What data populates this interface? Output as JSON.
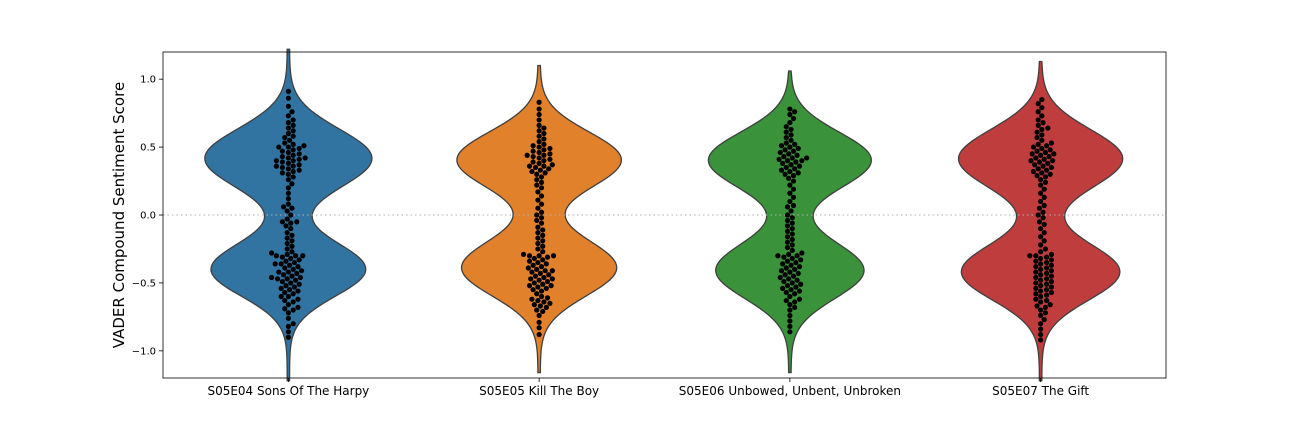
{
  "chart_data": {
    "type": "violin",
    "title": "",
    "xlabel": "",
    "ylabel": "VADER Compound Sentiment Score",
    "ylim": [
      -1.2,
      1.2
    ],
    "yticks": [
      -1.0,
      -0.5,
      0.0,
      0.5,
      1.0
    ],
    "ytick_labels": [
      "−1.0",
      "−0.5",
      "0.0",
      "0.5",
      "1.0"
    ],
    "zero_reference_line": true,
    "grid": false,
    "legend": "none",
    "swarm_color": "#000000",
    "categories": [
      "S05E04 Sons Of The Harpy",
      "S05E05 Kill The Boy",
      "S05E06 Unbowed, Unbent, Unbroken",
      "S05E07 The Gift"
    ],
    "colors": [
      "#3274a1",
      "#e1812c",
      "#3a923a",
      "#c03d3e"
    ],
    "series": [
      {
        "range": [
          -1.22,
          1.22
        ],
        "modes": [
          {
            "center": 0.43,
            "width": 0.22,
            "weight": 1.0
          },
          {
            "center": -0.41,
            "width": 0.2,
            "weight": 0.92
          }
        ],
        "points": [
          -0.9,
          -0.86,
          -0.82,
          -0.8,
          -0.76,
          -0.72,
          -0.7,
          -0.69,
          -0.68,
          -0.66,
          -0.64,
          -0.63,
          -0.62,
          -0.6,
          -0.6,
          -0.58,
          -0.57,
          -0.56,
          -0.55,
          -0.54,
          -0.53,
          -0.52,
          -0.51,
          -0.5,
          -0.49,
          -0.48,
          -0.47,
          -0.47,
          -0.46,
          -0.46,
          -0.45,
          -0.44,
          -0.43,
          -0.42,
          -0.42,
          -0.41,
          -0.4,
          -0.39,
          -0.38,
          -0.37,
          -0.36,
          -0.36,
          -0.35,
          -0.34,
          -0.33,
          -0.32,
          -0.31,
          -0.3,
          -0.3,
          -0.3,
          -0.29,
          -0.28,
          -0.27,
          -0.25,
          -0.23,
          -0.21,
          -0.19,
          -0.17,
          -0.15,
          -0.13,
          -0.1,
          -0.08,
          -0.06,
          -0.05,
          -0.05,
          -0.03,
          0.0,
          0.03,
          0.05,
          0.06,
          0.08,
          0.12,
          0.16,
          0.2,
          0.23,
          0.26,
          0.28,
          0.3,
          0.31,
          0.32,
          0.33,
          0.34,
          0.35,
          0.36,
          0.36,
          0.37,
          0.38,
          0.39,
          0.4,
          0.4,
          0.41,
          0.42,
          0.42,
          0.43,
          0.44,
          0.45,
          0.46,
          0.47,
          0.48,
          0.49,
          0.5,
          0.5,
          0.51,
          0.52,
          0.53,
          0.55,
          0.57,
          0.58,
          0.6,
          0.62,
          0.64,
          0.66,
          0.68,
          0.7,
          0.73,
          0.76,
          0.8,
          0.86,
          0.91
        ]
      },
      {
        "range": [
          -1.16,
          1.1
        ],
        "modes": [
          {
            "center": 0.42,
            "width": 0.21,
            "weight": 1.0
          },
          {
            "center": -0.4,
            "width": 0.21,
            "weight": 0.92
          }
        ],
        "points": [
          -0.88,
          -0.83,
          -0.79,
          -0.74,
          -0.71,
          -0.7,
          -0.68,
          -0.67,
          -0.66,
          -0.65,
          -0.64,
          -0.63,
          -0.62,
          -0.61,
          -0.6,
          -0.58,
          -0.56,
          -0.55,
          -0.54,
          -0.53,
          -0.52,
          -0.52,
          -0.51,
          -0.5,
          -0.49,
          -0.48,
          -0.47,
          -0.47,
          -0.46,
          -0.45,
          -0.44,
          -0.43,
          -0.42,
          -0.41,
          -0.41,
          -0.4,
          -0.39,
          -0.38,
          -0.37,
          -0.36,
          -0.35,
          -0.34,
          -0.33,
          -0.32,
          -0.31,
          -0.3,
          -0.3,
          -0.3,
          -0.29,
          -0.27,
          -0.25,
          -0.23,
          -0.21,
          -0.19,
          -0.17,
          -0.15,
          -0.13,
          -0.11,
          -0.09,
          -0.06,
          -0.04,
          -0.02,
          0.0,
          0.02,
          0.05,
          0.08,
          0.11,
          0.14,
          0.17,
          0.2,
          0.22,
          0.24,
          0.26,
          0.28,
          0.3,
          0.31,
          0.32,
          0.33,
          0.34,
          0.35,
          0.36,
          0.36,
          0.37,
          0.38,
          0.39,
          0.4,
          0.41,
          0.42,
          0.43,
          0.44,
          0.44,
          0.45,
          0.46,
          0.47,
          0.48,
          0.49,
          0.5,
          0.51,
          0.52,
          0.54,
          0.56,
          0.58,
          0.6,
          0.62,
          0.64,
          0.66,
          0.7,
          0.74,
          0.78,
          0.83
        ]
      },
      {
        "range": [
          -1.16,
          1.06
        ],
        "modes": [
          {
            "center": 0.42,
            "width": 0.21,
            "weight": 1.0
          },
          {
            "center": -0.42,
            "width": 0.21,
            "weight": 0.88
          }
        ],
        "points": [
          -0.86,
          -0.82,
          -0.78,
          -0.74,
          -0.7,
          -0.68,
          -0.66,
          -0.64,
          -0.63,
          -0.62,
          -0.6,
          -0.58,
          -0.57,
          -0.56,
          -0.55,
          -0.54,
          -0.53,
          -0.52,
          -0.51,
          -0.5,
          -0.49,
          -0.48,
          -0.47,
          -0.46,
          -0.45,
          -0.44,
          -0.43,
          -0.42,
          -0.41,
          -0.4,
          -0.39,
          -0.38,
          -0.37,
          -0.36,
          -0.35,
          -0.34,
          -0.33,
          -0.32,
          -0.31,
          -0.3,
          -0.3,
          -0.29,
          -0.28,
          -0.26,
          -0.24,
          -0.22,
          -0.2,
          -0.18,
          -0.16,
          -0.14,
          -0.12,
          -0.1,
          -0.08,
          -0.06,
          -0.04,
          -0.02,
          0.0,
          0.03,
          0.06,
          0.07,
          0.1,
          0.13,
          0.16,
          0.19,
          0.22,
          0.25,
          0.27,
          0.29,
          0.3,
          0.31,
          0.32,
          0.33,
          0.34,
          0.35,
          0.36,
          0.37,
          0.38,
          0.39,
          0.4,
          0.4,
          0.41,
          0.42,
          0.42,
          0.43,
          0.44,
          0.45,
          0.46,
          0.47,
          0.48,
          0.49,
          0.5,
          0.51,
          0.52,
          0.53,
          0.55,
          0.57,
          0.59,
          0.61,
          0.63,
          0.65,
          0.68,
          0.71,
          0.74,
          0.76,
          0.78
        ]
      },
      {
        "range": [
          -1.22,
          1.13
        ],
        "modes": [
          {
            "center": 0.43,
            "width": 0.22,
            "weight": 1.0
          },
          {
            "center": -0.43,
            "width": 0.21,
            "weight": 0.94
          }
        ],
        "points": [
          -0.92,
          -0.88,
          -0.84,
          -0.8,
          -0.77,
          -0.74,
          -0.72,
          -0.7,
          -0.68,
          -0.67,
          -0.66,
          -0.64,
          -0.63,
          -0.62,
          -0.6,
          -0.59,
          -0.58,
          -0.57,
          -0.56,
          -0.55,
          -0.54,
          -0.53,
          -0.52,
          -0.51,
          -0.5,
          -0.49,
          -0.48,
          -0.47,
          -0.46,
          -0.45,
          -0.44,
          -0.43,
          -0.42,
          -0.41,
          -0.4,
          -0.39,
          -0.38,
          -0.37,
          -0.36,
          -0.35,
          -0.34,
          -0.33,
          -0.32,
          -0.31,
          -0.3,
          -0.3,
          -0.29,
          -0.27,
          -0.25,
          -0.22,
          -0.19,
          -0.16,
          -0.13,
          -0.1,
          -0.07,
          -0.05,
          -0.02,
          0.0,
          0.02,
          0.05,
          0.07,
          0.1,
          0.13,
          0.16,
          0.19,
          0.22,
          0.24,
          0.26,
          0.28,
          0.29,
          0.3,
          0.31,
          0.32,
          0.33,
          0.34,
          0.35,
          0.36,
          0.37,
          0.38,
          0.39,
          0.4,
          0.4,
          0.41,
          0.42,
          0.43,
          0.44,
          0.45,
          0.45,
          0.46,
          0.47,
          0.48,
          0.49,
          0.5,
          0.51,
          0.52,
          0.53,
          0.55,
          0.57,
          0.59,
          0.61,
          0.63,
          0.64,
          0.66,
          0.68,
          0.7,
          0.73,
          0.76,
          0.79,
          0.82,
          0.85
        ]
      }
    ]
  }
}
